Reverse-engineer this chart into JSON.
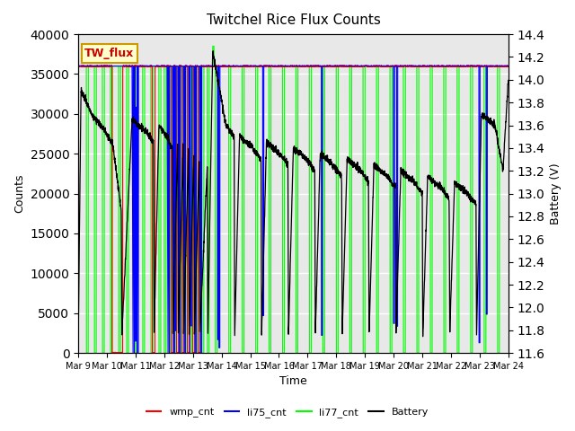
{
  "title": "Twitchel Rice Flux Counts",
  "xlabel": "Time",
  "ylabel_left": "Counts",
  "ylabel_right": "Battery (V)",
  "left_ylim": [
    0,
    40000
  ],
  "right_ylim": [
    11.6,
    14.4
  ],
  "left_yticks": [
    0,
    5000,
    10000,
    15000,
    20000,
    25000,
    30000,
    35000,
    40000
  ],
  "right_yticks": [
    11.6,
    11.8,
    12.0,
    12.2,
    12.4,
    12.6,
    12.8,
    13.0,
    13.2,
    13.4,
    13.6,
    13.8,
    14.0,
    14.2,
    14.4
  ],
  "xtick_labels": [
    "Mar 9",
    "Mar 10",
    "Mar 11",
    "Mar 12",
    "Mar 13",
    "Mar 14",
    "Mar 15",
    "Mar 16",
    "Mar 17",
    "Mar 18",
    "Mar 19",
    "Mar 20",
    "Mar 21",
    "Mar 22",
    "Mar 23",
    "Mar 24"
  ],
  "legend_entries": [
    "wmp_cnt",
    "li75_cnt",
    "li77_cnt",
    "Battery"
  ],
  "legend_colors": [
    "red",
    "blue",
    "lime",
    "black"
  ],
  "annotation_text": "TW_flux",
  "annotation_box_color": "#ffffcc",
  "annotation_box_edge": "#cc9900",
  "annotation_text_color": "#cc0000",
  "plot_bg_color": "#e8e8e8",
  "grid_color": "white",
  "n_points": 3000,
  "ctrl_t": [
    0,
    0.1,
    0.5,
    1.0,
    1.25,
    1.3,
    1.6,
    1.62,
    2.0,
    2.5,
    2.8,
    2.82,
    3.0,
    3.3,
    3.5,
    3.52,
    3.7,
    3.72,
    3.9,
    3.92,
    4.1,
    4.12,
    4.3,
    4.32,
    4.5,
    4.52,
    4.8,
    4.82,
    5.0,
    5.5,
    5.8,
    5.82,
    6.0,
    6.5,
    6.8,
    6.82,
    7.0,
    7.5,
    7.8,
    7.82,
    8.0,
    8.5,
    8.8,
    8.82,
    9.0,
    9.5,
    9.8,
    9.82,
    10.0,
    10.5,
    10.8,
    10.82,
    11.0,
    11.5,
    11.8,
    11.82,
    12.0,
    12.5,
    12.8,
    12.82,
    13.0,
    13.5,
    13.8,
    13.82,
    14.0,
    14.5,
    14.8,
    14.82,
    15.0,
    15.5,
    15.8,
    16.0
  ],
  "ctrl_v": [
    11.75,
    13.9,
    13.7,
    13.55,
    13.45,
    13.4,
    12.85,
    11.75,
    13.65,
    13.55,
    13.45,
    11.75,
    13.6,
    13.5,
    13.4,
    11.75,
    13.5,
    11.75,
    13.45,
    11.75,
    13.4,
    11.75,
    13.35,
    11.75,
    13.3,
    11.75,
    13.25,
    11.75,
    14.25,
    13.6,
    13.5,
    11.75,
    13.5,
    13.4,
    13.3,
    11.75,
    13.45,
    13.35,
    13.25,
    11.75,
    13.4,
    13.3,
    13.2,
    11.75,
    13.35,
    13.25,
    13.15,
    11.75,
    13.3,
    13.2,
    13.1,
    11.75,
    13.25,
    13.15,
    13.05,
    11.75,
    13.2,
    13.1,
    13.0,
    11.75,
    13.15,
    13.05,
    12.95,
    11.75,
    13.1,
    13.0,
    12.9,
    11.75,
    13.7,
    13.6,
    13.2,
    14.0
  ]
}
